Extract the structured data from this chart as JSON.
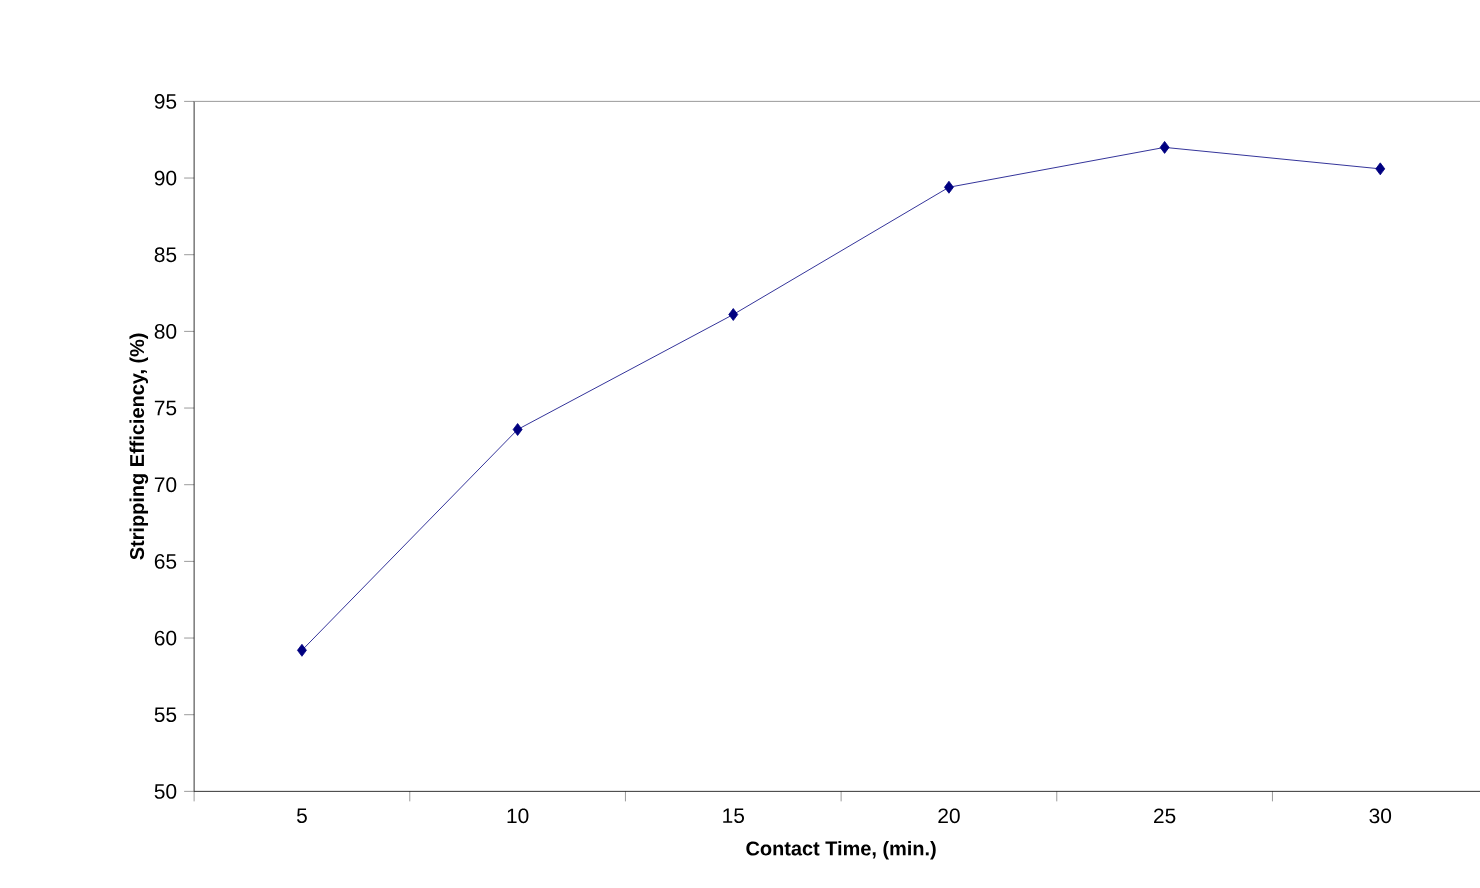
{
  "chart_data": {
    "type": "line",
    "xlabel": "Contact Time, (min.)",
    "ylabel": "Stripping Efficiency, (%)",
    "categories": [
      "5",
      "10",
      "15",
      "20",
      "25",
      "30"
    ],
    "series": [
      {
        "color": "#000080",
        "values": [
          59.2,
          73.6,
          81.1,
          89.4,
          92.0,
          90.6
        ]
      }
    ],
    "ylim": [
      50,
      95
    ],
    "yticks": [
      50,
      55,
      60,
      65,
      70,
      75,
      80,
      85,
      90,
      95
    ],
    "marker": "diamond",
    "line_style": "solid"
  }
}
